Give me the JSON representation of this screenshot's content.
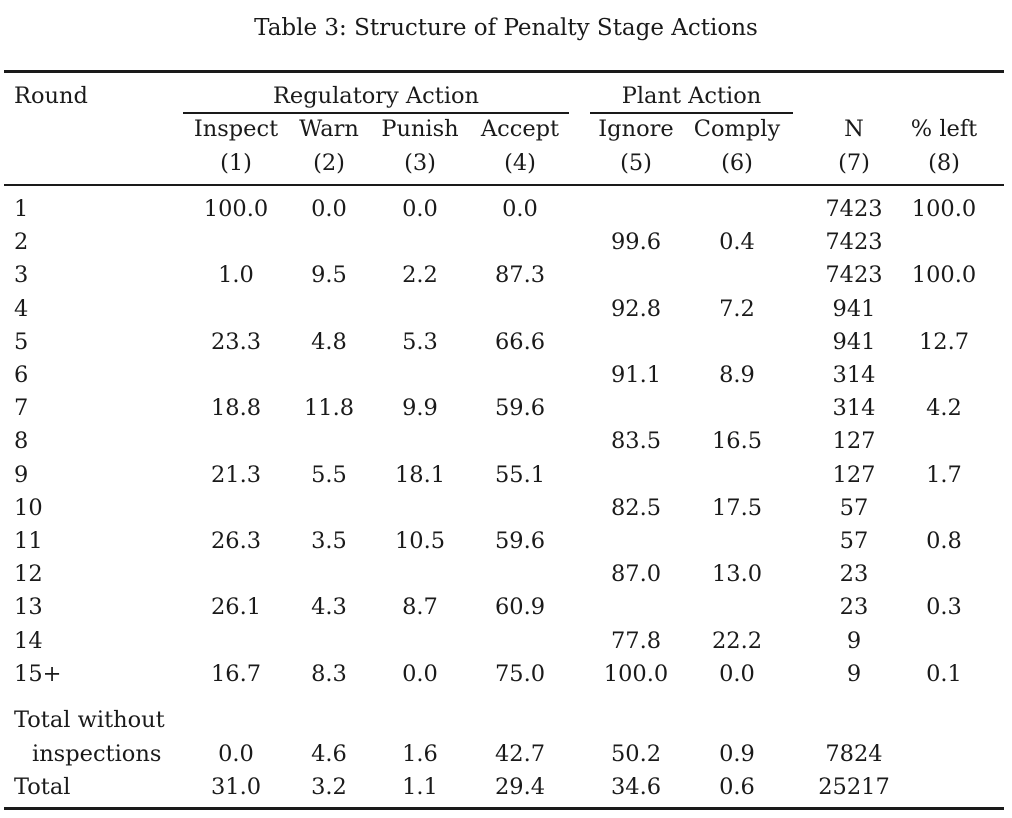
{
  "caption": "Table 3: Structure of Penalty Stage Actions",
  "header": {
    "round": "Round",
    "group_regulatory": "Regulatory Action",
    "group_plant": "Plant Action",
    "columns": [
      {
        "name": "Inspect",
        "num": "(1)"
      },
      {
        "name": "Warn",
        "num": "(2)"
      },
      {
        "name": "Punish",
        "num": "(3)"
      },
      {
        "name": "Accept",
        "num": "(4)"
      },
      {
        "name": "Ignore",
        "num": "(5)"
      },
      {
        "name": "Comply",
        "num": "(6)"
      },
      {
        "name": "N",
        "num": "(7)"
      },
      {
        "name": "% left",
        "num": "(8)"
      }
    ]
  },
  "rows": [
    {
      "label": "1",
      "cells": [
        "100.0",
        "0.0",
        "0.0",
        "0.0",
        "",
        "",
        "7423",
        "100.0"
      ]
    },
    {
      "label": "2",
      "cells": [
        "",
        "",
        "",
        "",
        "99.6",
        "0.4",
        "7423",
        ""
      ]
    },
    {
      "label": "3",
      "cells": [
        "1.0",
        "9.5",
        "2.2",
        "87.3",
        "",
        "",
        "7423",
        "100.0"
      ]
    },
    {
      "label": "4",
      "cells": [
        "",
        "",
        "",
        "",
        "92.8",
        "7.2",
        "941",
        ""
      ]
    },
    {
      "label": "5",
      "cells": [
        "23.3",
        "4.8",
        "5.3",
        "66.6",
        "",
        "",
        "941",
        "12.7"
      ]
    },
    {
      "label": "6",
      "cells": [
        "",
        "",
        "",
        "",
        "91.1",
        "8.9",
        "314",
        ""
      ]
    },
    {
      "label": "7",
      "cells": [
        "18.8",
        "11.8",
        "9.9",
        "59.6",
        "",
        "",
        "314",
        "4.2"
      ]
    },
    {
      "label": "8",
      "cells": [
        "",
        "",
        "",
        "",
        "83.5",
        "16.5",
        "127",
        ""
      ]
    },
    {
      "label": "9",
      "cells": [
        "21.3",
        "5.5",
        "18.1",
        "55.1",
        "",
        "",
        "127",
        "1.7"
      ]
    },
    {
      "label": "10",
      "cells": [
        "",
        "",
        "",
        "",
        "82.5",
        "17.5",
        "57",
        ""
      ]
    },
    {
      "label": "11",
      "cells": [
        "26.3",
        "3.5",
        "10.5",
        "59.6",
        "",
        "",
        "57",
        "0.8"
      ]
    },
    {
      "label": "12",
      "cells": [
        "",
        "",
        "",
        "",
        "87.0",
        "13.0",
        "23",
        ""
      ]
    },
    {
      "label": "13",
      "cells": [
        "26.1",
        "4.3",
        "8.7",
        "60.9",
        "",
        "",
        "23",
        "0.3"
      ]
    },
    {
      "label": "14",
      "cells": [
        "",
        "",
        "",
        "",
        "77.8",
        "22.2",
        "9",
        ""
      ]
    },
    {
      "label": "15+",
      "cells": [
        "16.7",
        "8.3",
        "0.0",
        "75.0",
        "100.0",
        "0.0",
        "9",
        "0.1"
      ]
    }
  ],
  "totals": [
    {
      "label_line1": "Total without",
      "label_line2": "inspections",
      "cells": [
        "0.0",
        "4.6",
        "1.6",
        "42.7",
        "50.2",
        "0.9",
        "7824",
        ""
      ]
    },
    {
      "label": "Total",
      "cells": [
        "31.0",
        "3.2",
        "1.1",
        "29.4",
        "34.6",
        "0.6",
        "25217",
        ""
      ]
    }
  ]
}
